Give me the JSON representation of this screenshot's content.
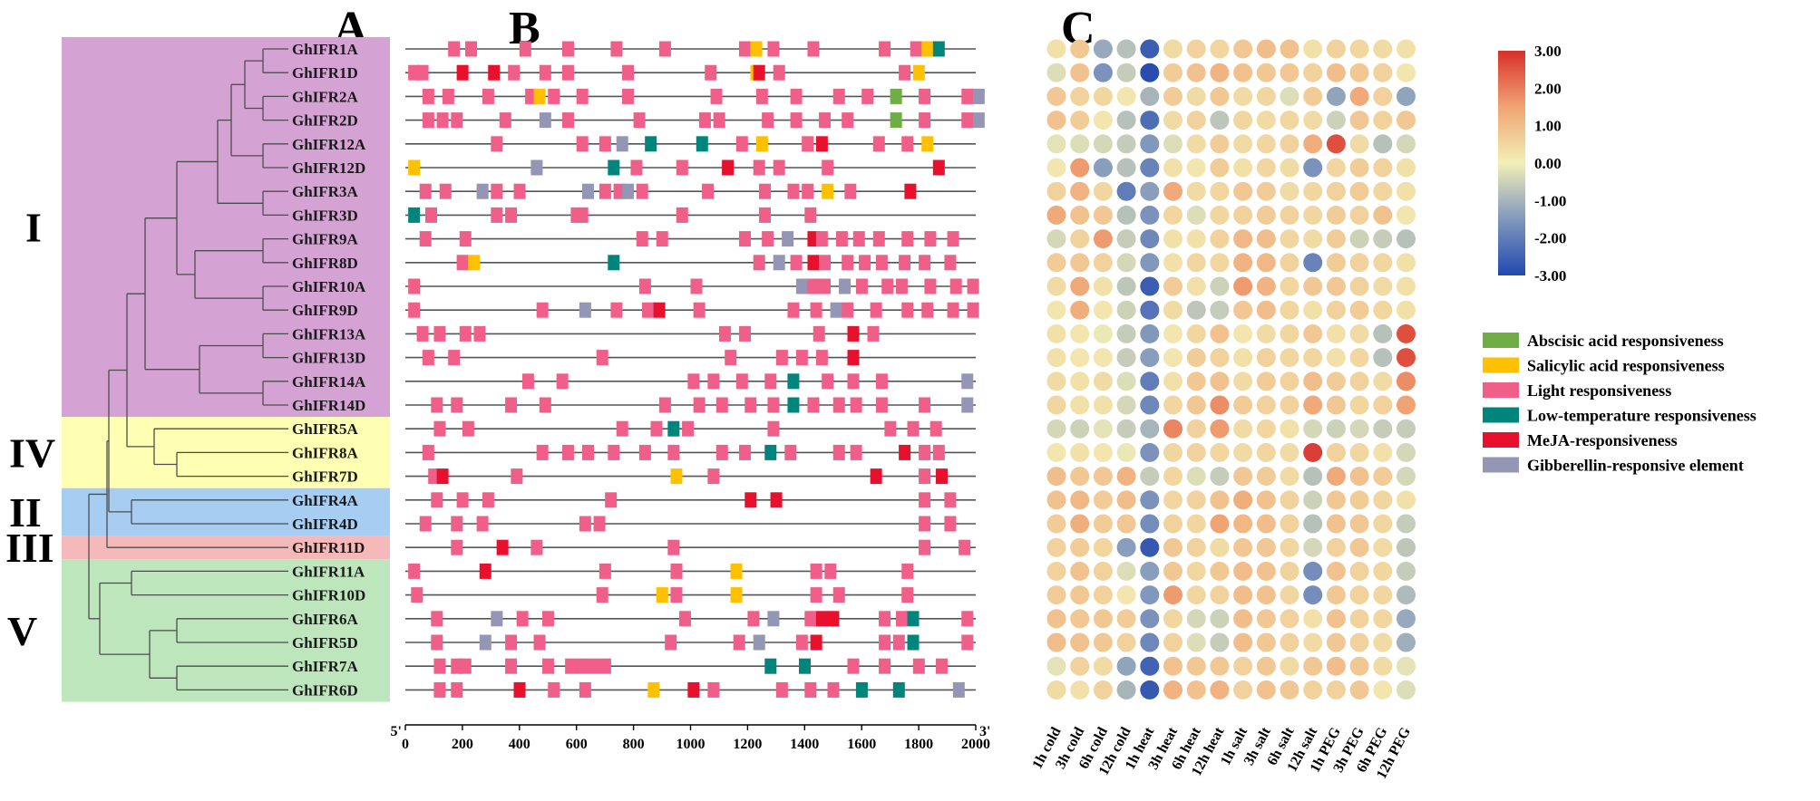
{
  "chart_data": {
    "type": "composite",
    "panels": [
      "A",
      "B",
      "C"
    ],
    "groups": [
      {
        "name": "I",
        "color": "#d4a3d4",
        "genes": [
          "GhIFR1A",
          "GhIFR1D",
          "GhIFR2A",
          "GhIFR2D",
          "GhIFR12A",
          "GhIFR12D",
          "GhIFR3A",
          "GhIFR3D",
          "GhIFR9A",
          "GhIFR8D",
          "GhIFR10A",
          "GhIFR9D",
          "GhIFR13A",
          "GhIFR13D",
          "GhIFR14A",
          "GhIFR14D"
        ]
      },
      {
        "name": "IV",
        "color": "#ffffb3",
        "genes": [
          "GhIFR5A",
          "GhIFR8A",
          "GhIFR7D"
        ]
      },
      {
        "name": "II",
        "color": "#a7cef2",
        "genes": [
          "GhIFR4A",
          "GhIFR4D"
        ]
      },
      {
        "name": "III",
        "color": "#f6b9b9",
        "genes": [
          "GhIFR11D"
        ]
      },
      {
        "name": "V",
        "color": "#bde6bd",
        "genes": [
          "GhIFR11A",
          "GhIFR10D",
          "GhIFR6A",
          "GhIFR5D",
          "GhIFR7A",
          "GhIFR6D"
        ]
      }
    ],
    "genes": [
      "GhIFR1A",
      "GhIFR1D",
      "GhIFR2A",
      "GhIFR2D",
      "GhIFR12A",
      "GhIFR12D",
      "GhIFR3A",
      "GhIFR3D",
      "GhIFR9A",
      "GhIFR8D",
      "GhIFR10A",
      "GhIFR9D",
      "GhIFR13A",
      "GhIFR13D",
      "GhIFR14A",
      "GhIFR14D",
      "GhIFR5A",
      "GhIFR8A",
      "GhIFR7D",
      "GhIFR4A",
      "GhIFR4D",
      "GhIFR11D",
      "GhIFR11A",
      "GhIFR10D",
      "GhIFR6A",
      "GhIFR5D",
      "GhIFR7A",
      "GhIFR6D"
    ],
    "promoter_axis": {
      "start_label": "5'",
      "end_label": "3'",
      "range": [
        0,
        2000
      ],
      "ticks": [
        0,
        200,
        400,
        600,
        800,
        1000,
        1200,
        1400,
        1600,
        1800,
        2000
      ]
    },
    "element_types": [
      {
        "key": "a",
        "name": "Abscisic acid responsiveness",
        "color": "#70ad47"
      },
      {
        "key": "s",
        "name": "Salicylic acid responsiveness",
        "color": "#ffc000"
      },
      {
        "key": "l",
        "name": "Light responsiveness",
        "color": "#ef5f8a"
      },
      {
        "key": "t",
        "name": "Low-temperature responsiveness",
        "color": "#00857c"
      },
      {
        "key": "m",
        "name": "MeJA-responsiveness",
        "color": "#e8112d"
      },
      {
        "key": "g",
        "name": "Gibberellin-responsive element",
        "color": "#9595b5"
      }
    ],
    "elements": [
      [
        "l150",
        "l210",
        "l400",
        "l550",
        "l720",
        "l890",
        "l1170",
        "s1210",
        "l1270",
        "l1410",
        "l1660",
        "l1770",
        "s1810",
        "t1850"
      ],
      [
        "l10",
        "l40",
        "m180",
        "m290",
        "l360",
        "l470",
        "l550",
        "l760",
        "l1050",
        "s1210",
        "m1220",
        "l1290",
        "l1730",
        "s1780"
      ],
      [
        "l60",
        "l130",
        "l270",
        "l420",
        "s450",
        "l500",
        "l600",
        "l760",
        "l1070",
        "l1230",
        "l1350",
        "l1500",
        "l1600",
        "a1700",
        "l1800",
        "l1950",
        "g1990"
      ],
      [
        "l60",
        "l110",
        "l160",
        "l330",
        "g470",
        "l550",
        "l800",
        "l1030",
        "l1080",
        "l1250",
        "l1350",
        "l1450",
        "l1530",
        "a1700",
        "l1800",
        "l1950",
        "g1990"
      ],
      [
        "l300",
        "l600",
        "l680",
        "g740",
        "t840",
        "t1020",
        "l1160",
        "s1230",
        "l1390",
        "m1440",
        "l1640",
        "l1740",
        "s1810"
      ],
      [
        "s10",
        "g440",
        "t710",
        "l790",
        "l950",
        "m1110",
        "l1220",
        "l1290",
        "l1460",
        "m1850"
      ],
      [
        "l50",
        "l120",
        "g250",
        "l300",
        "l380",
        "g620",
        "l680",
        "l730",
        "g760",
        "l810",
        "l1040",
        "l1240",
        "l1340",
        "l1390",
        "s1460",
        "l1540",
        "m1750"
      ],
      [
        "t10",
        "l70",
        "l300",
        "l350",
        "l580",
        "l600",
        "l950",
        "l1240",
        "l1400"
      ],
      [
        "l50",
        "l190",
        "l810",
        "l880",
        "l1170",
        "l1250",
        "g1320",
        "m1410",
        "l1440",
        "l1510",
        "l1570",
        "l1640",
        "l1740",
        "l1820",
        "l1900"
      ],
      [
        "l180",
        "s220",
        "t710",
        "l1220",
        "g1290",
        "l1350",
        "m1410",
        "l1450",
        "l1530",
        "l1590",
        "l1650",
        "l1730",
        "l1800",
        "l1890"
      ],
      [
        "l10",
        "l820",
        "l1000",
        "g1370",
        "l1410",
        "l1450",
        "g1520",
        "l1580",
        "l1670",
        "l1720",
        "l1820",
        "l1910",
        "l1970"
      ],
      [
        "l10",
        "l460",
        "g610",
        "l720",
        "l830",
        "m870",
        "l1010",
        "l1340",
        "l1420",
        "g1490",
        "l1530",
        "l1630",
        "l1740",
        "l1810",
        "l1900",
        "l1970"
      ],
      [
        "l40",
        "l100",
        "l190",
        "l240",
        "l1100",
        "l1170",
        "l1430",
        "m1550",
        "l1620"
      ],
      [
        "l60",
        "l150",
        "l670",
        "l1120",
        "l1300",
        "l1370",
        "l1440",
        "m1550"
      ],
      [
        "l410",
        "l530",
        "l990",
        "l1060",
        "l1160",
        "l1260",
        "t1340",
        "l1460",
        "l1550",
        "l1650",
        "g1950"
      ],
      [
        "l90",
        "l160",
        "l350",
        "l470",
        "l890",
        "l1010",
        "l1090",
        "l1190",
        "l1270",
        "t1340",
        "l1410",
        "l1500",
        "l1560",
        "l1650",
        "l1800",
        "g1950"
      ],
      [
        "l100",
        "l200",
        "l740",
        "l860",
        "t920",
        "l970",
        "l1270",
        "l1680",
        "l1760",
        "l1840"
      ],
      [
        "l60",
        "l460",
        "l550",
        "l620",
        "l710",
        "l820",
        "l920",
        "l1090",
        "l1170",
        "t1260",
        "l1330",
        "l1500",
        "l1560",
        "m1730",
        "l1800",
        "l1850"
      ],
      [
        "l80",
        "m110",
        "l370",
        "s930",
        "l1060",
        "m1630",
        "l1800",
        "m1860"
      ],
      [
        "l90",
        "l180",
        "l270",
        "l700",
        "m1190",
        "m1280",
        "l1800",
        "l1890"
      ],
      [
        "l50",
        "l160",
        "l250",
        "l610",
        "l660",
        "l1800",
        "l1890"
      ],
      [
        "l160",
        "m320",
        "l440",
        "l920",
        "l1800",
        "l1940"
      ],
      [
        "l10",
        "m260",
        "l680",
        "l930",
        "s1140",
        "l1420",
        "l1470",
        "l1740"
      ],
      [
        "l20",
        "l670",
        "s880",
        "l930",
        "s1140",
        "l1420",
        "l1500",
        "l1740"
      ],
      [
        "l90",
        "g300",
        "l390",
        "l480",
        "l960",
        "l1200",
        "g1270",
        "l1400",
        "m1440",
        "m1480",
        "l1660",
        "l1720",
        "t1760",
        "l1950"
      ],
      [
        "l90",
        "g260",
        "l350",
        "l450",
        "l910",
        "l1150",
        "g1220",
        "l1370",
        "m1420",
        "l1660",
        "l1710",
        "t1760",
        "l1950"
      ],
      [
        "l100",
        "l160",
        "l190",
        "l350",
        "l480",
        "l560",
        "l600",
        "l640",
        "l680",
        "t1260",
        "t1380",
        "l1550",
        "l1660",
        "l1780",
        "l1860"
      ],
      [
        "l100",
        "l160",
        "m380",
        "l500",
        "l610",
        "s850",
        "m990",
        "l1060",
        "l1300",
        "l1400",
        "l1480",
        "t1580",
        "t1710",
        "g1920"
      ]
    ],
    "heatmap": {
      "conditions": [
        "1h cold",
        "3h cold",
        "6h cold",
        "12h cold",
        "1h heat",
        "3h heat",
        "6h heat",
        "12h heat",
        "1h salt",
        "3h salt",
        "6h salt",
        "12h salt",
        "1h PEG",
        "3h PEG",
        "6h PEG",
        "12h PEG"
      ],
      "scale": {
        "min": -3.0,
        "max": 3.0,
        "ticks": [
          "3.00",
          "2.00",
          "1.00",
          "0.00",
          "-1.00",
          "-2.00",
          "-3.00"
        ]
      },
      "values": [
        [
          0.3,
          0.8,
          -1.2,
          -0.8,
          -2.6,
          0.4,
          0.6,
          0.5,
          0.8,
          1.0,
          0.9,
          0.3,
          0.6,
          0.5,
          0.4,
          0.3
        ],
        [
          -0.3,
          0.9,
          -1.6,
          -0.6,
          -2.9,
          0.7,
          0.9,
          1.2,
          0.9,
          0.8,
          0.8,
          0.6,
          1.0,
          0.8,
          0.6,
          0.2
        ],
        [
          0.8,
          0.6,
          0.5,
          0.2,
          -1.0,
          0.7,
          0.4,
          0.8,
          0.4,
          0.5,
          -0.3,
          0.7,
          -1.3,
          1.4,
          0.6,
          -1.3
        ],
        [
          0.9,
          0.7,
          0.2,
          -0.8,
          -2.3,
          0.4,
          0.6,
          -0.7,
          0.5,
          0.4,
          0.5,
          0.4,
          -0.5,
          0.8,
          0.6,
          0.8
        ],
        [
          -0.2,
          -0.3,
          -0.4,
          -0.6,
          -1.5,
          -0.3,
          0.4,
          0.7,
          0.4,
          0.5,
          0.6,
          1.3,
          2.6,
          0.4,
          -0.8,
          -0.4
        ],
        [
          0.2,
          1.6,
          -1.4,
          -0.8,
          -1.9,
          0.3,
          0.2,
          0.7,
          0.3,
          0.5,
          0.4,
          -1.6,
          0.5,
          0.7,
          0.6,
          0.3
        ],
        [
          0.6,
          1.2,
          0.5,
          -2.0,
          -1.4,
          1.4,
          0.4,
          0.5,
          0.8,
          0.7,
          0.4,
          0.5,
          0.6,
          0.7,
          0.5,
          0.3
        ],
        [
          1.4,
          0.9,
          0.8,
          -0.8,
          -1.6,
          0.5,
          -0.3,
          0.5,
          0.6,
          0.7,
          0.6,
          0.5,
          0.7,
          0.6,
          0.9,
          0.2
        ],
        [
          -0.4,
          0.6,
          1.6,
          -0.6,
          -1.8,
          0.3,
          0.3,
          0.6,
          1.1,
          1.0,
          0.5,
          0.4,
          0.7,
          -0.5,
          -0.6,
          -0.8
        ],
        [
          0.7,
          0.8,
          0.6,
          -0.4,
          -1.5,
          0.3,
          0.5,
          0.5,
          1.2,
          1.1,
          0.6,
          -1.9,
          0.7,
          0.6,
          0.5,
          0.3
        ],
        [
          0.4,
          1.4,
          0.3,
          -0.7,
          -2.6,
          0.7,
          0.3,
          -0.5,
          1.6,
          1.2,
          0.5,
          0.8,
          0.8,
          0.6,
          0.4,
          0.3
        ],
        [
          0.2,
          1.3,
          0.2,
          -0.5,
          -2.2,
          0.4,
          -0.7,
          -0.6,
          0.8,
          1.0,
          0.5,
          0.3,
          0.6,
          0.7,
          0.5,
          0.3
        ],
        [
          0.3,
          0.2,
          -0.1,
          -0.6,
          -1.5,
          0.2,
          0.5,
          0.9,
          0.2,
          0.4,
          0.5,
          0.8,
          0.3,
          0.4,
          -0.8,
          2.6
        ],
        [
          0.3,
          0.2,
          0.2,
          -0.6,
          -1.4,
          0.2,
          0.7,
          0.6,
          0.3,
          0.6,
          0.5,
          0.5,
          0.3,
          0.5,
          -0.8,
          2.6
        ],
        [
          0.4,
          0.3,
          0.4,
          -0.3,
          -2.0,
          0.3,
          0.8,
          0.9,
          0.4,
          0.7,
          0.6,
          1.0,
          0.7,
          0.6,
          0.4,
          1.8
        ],
        [
          0.5,
          0.3,
          0.3,
          -0.4,
          -1.8,
          0.5,
          0.8,
          1.8,
          0.7,
          0.6,
          0.6,
          1.4,
          0.8,
          0.5,
          0.6,
          1.5
        ],
        [
          -0.4,
          -0.5,
          -0.2,
          -0.6,
          -1.0,
          1.9,
          0.6,
          1.6,
          0.4,
          0.5,
          0.3,
          -0.4,
          -0.5,
          -0.4,
          -0.6,
          -0.6
        ],
        [
          0.2,
          0.3,
          0.2,
          -0.1,
          -1.6,
          0.5,
          0.6,
          0.5,
          0.4,
          0.5,
          0.4,
          2.8,
          0.6,
          0.5,
          0.3,
          -0.4
        ],
        [
          1.0,
          0.8,
          0.8,
          1.2,
          -0.6,
          0.5,
          -0.3,
          -0.6,
          0.8,
          0.7,
          0.4,
          -0.8,
          1.4,
          0.9,
          0.7,
          -0.4
        ],
        [
          0.9,
          1.1,
          0.7,
          1.0,
          -1.6,
          0.5,
          0.6,
          0.9,
          1.3,
          0.9,
          0.6,
          -0.5,
          0.8,
          0.7,
          0.5,
          0.3
        ],
        [
          0.7,
          1.3,
          0.7,
          0.8,
          -1.7,
          0.6,
          0.5,
          1.5,
          1.1,
          1.0,
          0.6,
          -0.8,
          0.9,
          0.8,
          0.5,
          -0.6
        ],
        [
          0.6,
          0.7,
          0.5,
          -1.4,
          -2.7,
          0.8,
          0.6,
          0.4,
          0.8,
          0.8,
          0.5,
          -0.4,
          0.6,
          0.8,
          0.4,
          -0.7
        ],
        [
          0.6,
          0.9,
          0.6,
          -0.3,
          -1.4,
          0.8,
          0.5,
          0.8,
          1.0,
          0.9,
          0.6,
          -1.7,
          0.9,
          0.6,
          0.5,
          -0.6
        ],
        [
          0.7,
          0.8,
          0.6,
          0.2,
          -1.5,
          1.6,
          0.5,
          0.6,
          1.0,
          0.9,
          0.5,
          -1.7,
          0.8,
          0.6,
          0.5,
          -0.9
        ],
        [
          0.9,
          0.8,
          0.8,
          0.7,
          -1.6,
          0.5,
          -0.4,
          -0.5,
          1.0,
          0.8,
          0.6,
          0.3,
          0.9,
          0.6,
          0.5,
          -1.2
        ],
        [
          1.0,
          0.9,
          0.8,
          0.6,
          -1.8,
          0.6,
          -0.3,
          -0.6,
          1.0,
          0.8,
          0.6,
          0.4,
          0.8,
          0.6,
          0.4,
          -1.1
        ],
        [
          -0.2,
          0.6,
          0.4,
          -1.3,
          -2.5,
          0.9,
          0.8,
          0.8,
          0.6,
          0.8,
          0.4,
          0.8,
          1.0,
          0.8,
          0.4,
          -0.2
        ],
        [
          0.4,
          0.3,
          0.6,
          -1.0,
          -2.7,
          1.2,
          0.9,
          1.2,
          0.6,
          0.9,
          0.8,
          0.6,
          0.6,
          0.8,
          0.2,
          -0.3
        ]
      ]
    }
  }
}
